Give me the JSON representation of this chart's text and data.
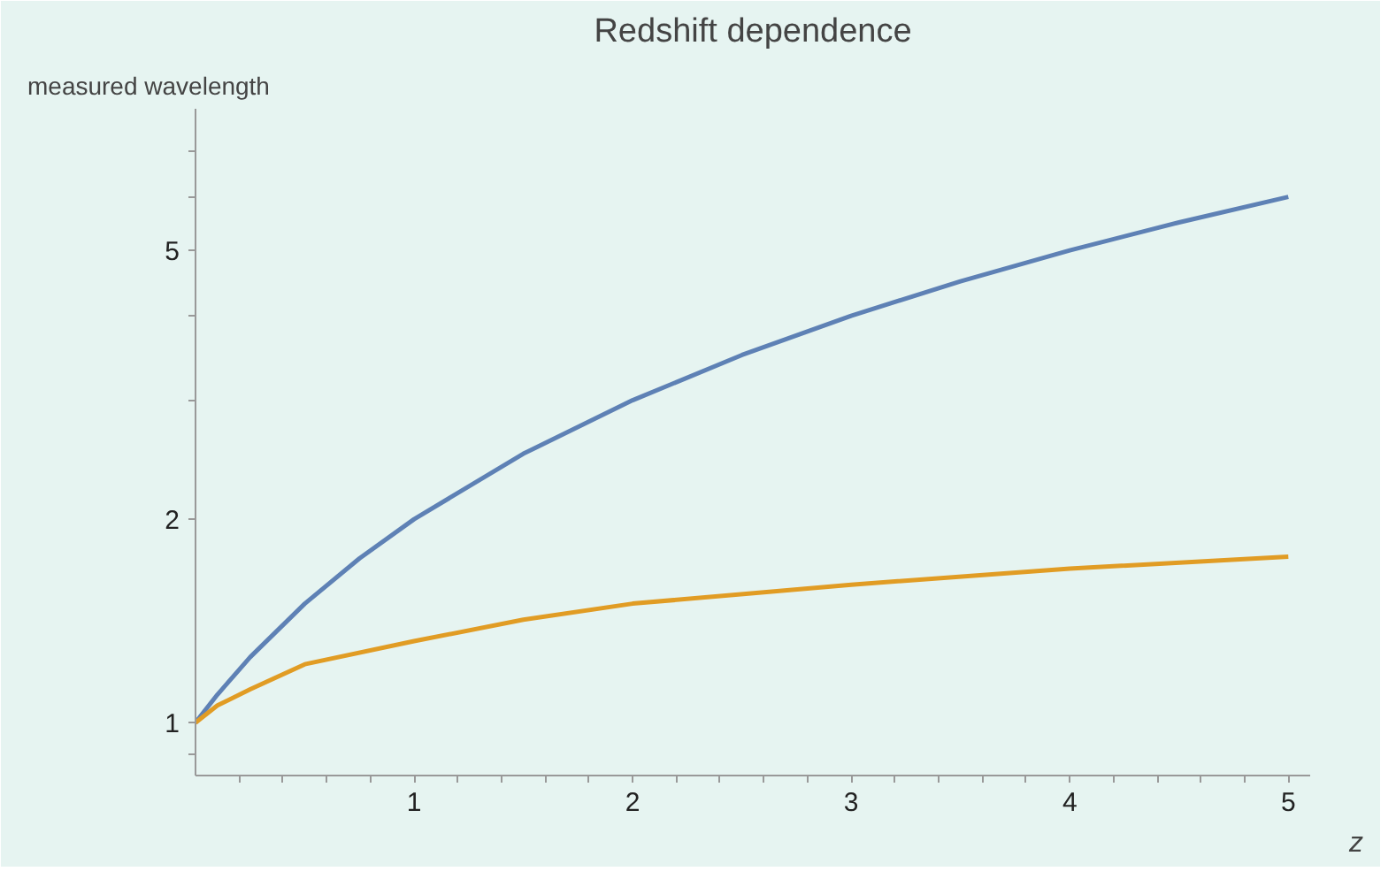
{
  "chart_data": {
    "type": "line",
    "title": "Redshift dependence",
    "xlabel": "z",
    "ylabel": "measured wavelength",
    "log": "y",
    "grid": false,
    "marker": "none",
    "line_style": "solid",
    "xlim": [
      0,
      5.1
    ],
    "ylim": [
      0.835,
      8.1
    ],
    "xticks": [
      {
        "value": 0.2,
        "label": null
      },
      {
        "value": 0.4,
        "label": null
      },
      {
        "value": 0.6,
        "label": null
      },
      {
        "value": 0.8,
        "label": null
      },
      1,
      {
        "value": 1.2,
        "label": null
      },
      {
        "value": 1.4,
        "label": null
      },
      {
        "value": 1.6,
        "label": null
      },
      {
        "value": 1.8,
        "label": null
      },
      2,
      {
        "value": 2.2,
        "label": null
      },
      {
        "value": 2.4,
        "label": null
      },
      {
        "value": 2.6,
        "label": null
      },
      {
        "value": 2.8,
        "label": null
      },
      3,
      {
        "value": 3.2,
        "label": null
      },
      {
        "value": 3.4,
        "label": null
      },
      {
        "value": 3.6,
        "label": null
      },
      {
        "value": 3.8,
        "label": null
      },
      4,
      {
        "value": 4.2,
        "label": null
      },
      {
        "value": 4.4,
        "label": null
      },
      {
        "value": 4.6,
        "label": null
      },
      {
        "value": 4.8,
        "label": null
      },
      5
    ],
    "yticks": [
      {
        "value": 0.9,
        "label": null
      },
      1,
      2,
      {
        "value": 3,
        "label": null
      },
      {
        "value": 4,
        "label": null
      },
      5,
      {
        "value": 6,
        "label": null
      },
      {
        "value": 7,
        "label": null
      }
    ],
    "series": [
      {
        "color": "#5e81b5",
        "x": [
          0,
          0.1,
          0.25,
          0.5,
          0.75,
          1,
          1.5,
          2,
          2.5,
          3,
          3.5,
          4,
          4.5,
          5
        ],
        "values": [
          1,
          1.1,
          1.25,
          1.5,
          1.75,
          2,
          2.5,
          3,
          3.5,
          4,
          4.5,
          5,
          5.5,
          6
        ]
      },
      {
        "color": "#e19c24",
        "x": [
          0,
          0.1,
          0.25,
          0.5,
          1,
          1.5,
          2,
          3,
          4,
          5
        ],
        "values": [
          1,
          1.06,
          1.12,
          1.22,
          1.32,
          1.42,
          1.5,
          1.6,
          1.69,
          1.76
        ]
      }
    ]
  }
}
